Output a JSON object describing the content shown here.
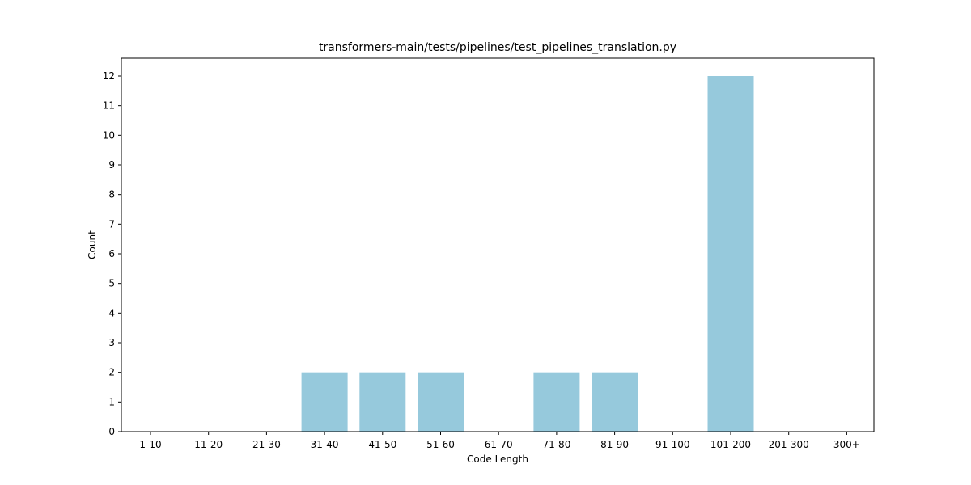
{
  "chart_data": {
    "type": "bar",
    "title": "transformers-main/tests/pipelines/test_pipelines_translation.py",
    "xlabel": "Code Length",
    "ylabel": "Count",
    "categories": [
      "1-10",
      "11-20",
      "21-30",
      "31-40",
      "41-50",
      "51-60",
      "61-70",
      "71-80",
      "81-90",
      "91-100",
      "101-200",
      "201-300",
      "300+"
    ],
    "values": [
      0,
      0,
      0,
      2,
      2,
      2,
      0,
      2,
      2,
      0,
      12,
      0,
      0
    ],
    "ylim": [
      0,
      12.6
    ],
    "yticks": [
      0,
      1,
      2,
      3,
      4,
      5,
      6,
      7,
      8,
      9,
      10,
      11,
      12
    ],
    "bar_color": "#96c9dc",
    "grid": false,
    "legend": "none"
  }
}
